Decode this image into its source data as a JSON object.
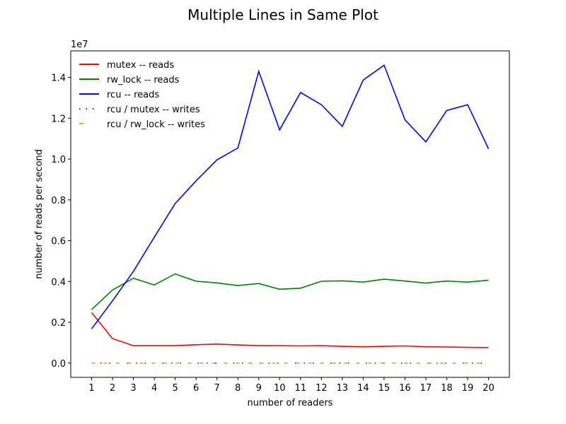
{
  "chart_data": {
    "type": "line",
    "title": "Multiple Lines in Same Plot",
    "xlabel": "number of readers",
    "ylabel": "number of reads per second",
    "y_offset_label": "1e7",
    "y_scale": 10000000,
    "xlim": [
      0,
      21
    ],
    "ylim": [
      -0.07,
      1.53
    ],
    "x": [
      1,
      2,
      3,
      4,
      5,
      6,
      7,
      8,
      9,
      10,
      11,
      12,
      13,
      14,
      15,
      16,
      17,
      18,
      19,
      20
    ],
    "xticks": [
      "1",
      "2",
      "3",
      "4",
      "5",
      "6",
      "7",
      "8",
      "9",
      "10",
      "11",
      "12",
      "13",
      "14",
      "15",
      "16",
      "17",
      "18",
      "19",
      "20"
    ],
    "yticks": [
      0.0,
      0.2,
      0.4,
      0.6,
      0.8,
      1.0,
      1.2,
      1.4
    ],
    "ytick_labels": [
      "0.0",
      "0.2",
      "0.4",
      "0.6",
      "0.8",
      "1.0",
      "1.2",
      "1.4"
    ],
    "grid": false,
    "legend_position": "top-left",
    "series": [
      {
        "name": "mutex -- reads",
        "color": "#ff0000",
        "style": "solid",
        "values": [
          0.248,
          0.12,
          0.085,
          0.085,
          0.085,
          0.09,
          0.093,
          0.089,
          0.085,
          0.085,
          0.084,
          0.085,
          0.082,
          0.08,
          0.082,
          0.084,
          0.08,
          0.079,
          0.077,
          0.076
        ]
      },
      {
        "name": "rw_lock -- reads",
        "color": "#008000",
        "style": "solid",
        "values": [
          0.262,
          0.358,
          0.416,
          0.383,
          0.437,
          0.401,
          0.393,
          0.38,
          0.39,
          0.362,
          0.367,
          0.401,
          0.403,
          0.397,
          0.411,
          0.402,
          0.392,
          0.402,
          0.397,
          0.406
        ]
      },
      {
        "name": "rcu -- reads",
        "color": "#0000ff",
        "style": "solid",
        "values": [
          0.168,
          0.305,
          0.45,
          0.617,
          0.782,
          0.893,
          0.996,
          1.054,
          1.43,
          1.143,
          1.326,
          1.266,
          1.16,
          1.387,
          1.46,
          1.192,
          1.084,
          1.238,
          1.266,
          1.05
        ]
      },
      {
        "name": "rcu / mutex -- writes",
        "color": "#800080",
        "style": "dotted",
        "values": [
          0,
          0,
          0,
          0,
          0,
          0,
          0,
          0,
          0,
          0,
          0,
          0,
          0,
          0,
          0,
          0,
          0,
          0,
          0,
          0
        ]
      },
      {
        "name": "rcu / rw_lock -- writes",
        "color": "#ffa500",
        "style": "dashed",
        "values": [
          0,
          0,
          0,
          0,
          0,
          0,
          0,
          0,
          0,
          0,
          0,
          0,
          0,
          0,
          0,
          0,
          0,
          0,
          0,
          0
        ]
      }
    ]
  }
}
